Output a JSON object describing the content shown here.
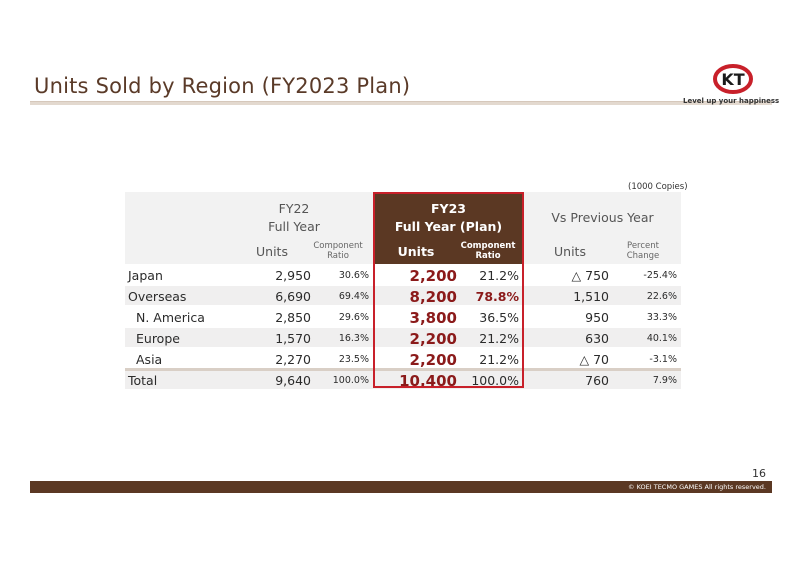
{
  "header": {
    "title": "Units Sold by Region (FY2023 Plan)",
    "logo_text": "KT",
    "tagline": "Level up your happiness"
  },
  "table": {
    "unit_note": "(1000 Copies)",
    "groups": {
      "fy22": {
        "line1": "FY22",
        "line2": "Full Year"
      },
      "fy23": {
        "line1": "FY23",
        "line2": "Full Year (Plan)"
      },
      "vs": {
        "label": "Vs Previous Year"
      }
    },
    "subheaders": {
      "fy22_units": "Units",
      "fy22_ratio_1": "Component",
      "fy22_ratio_2": "Ratio",
      "fy23_units": "Units",
      "fy23_ratio_1": "Component",
      "fy23_ratio_2": "Ratio",
      "vs_units": "Units",
      "vs_change_1": "Percent",
      "vs_change_2": "Change"
    },
    "rows": [
      {
        "region": "Japan",
        "fy22_units": "2,950",
        "fy22_ratio": "30.6%",
        "fy23_units": "2,200",
        "fy23_ratio": "21.2%",
        "vs_units": "△ 750",
        "vs_change": "-25.4%"
      },
      {
        "region": "Overseas",
        "fy22_units": "6,690",
        "fy22_ratio": "69.4%",
        "fy23_units": "8,200",
        "fy23_ratio": "78.8%",
        "vs_units": "1,510",
        "vs_change": "22.6%"
      },
      {
        "region": "N. America",
        "fy22_units": "2,850",
        "fy22_ratio": "29.6%",
        "fy23_units": "3,800",
        "fy23_ratio": "36.5%",
        "vs_units": "950",
        "vs_change": "33.3%"
      },
      {
        "region": "Europe",
        "fy22_units": "1,570",
        "fy22_ratio": "16.3%",
        "fy23_units": "2,200",
        "fy23_ratio": "21.2%",
        "vs_units": "630",
        "vs_change": "40.1%"
      },
      {
        "region": "Asia",
        "fy22_units": "2,270",
        "fy22_ratio": "23.5%",
        "fy23_units": "2,200",
        "fy23_ratio": "21.2%",
        "vs_units": "△ 70",
        "vs_change": "-3.1%"
      },
      {
        "region": "Total",
        "fy22_units": "9,640",
        "fy22_ratio": "100.0%",
        "fy23_units": "10,400",
        "fy23_ratio": "100.0%",
        "vs_units": "760",
        "vs_change": "7.9%"
      }
    ]
  },
  "footer": {
    "page_number": "16",
    "copyright": "© KOEI TECMO GAMES All rights reserved."
  },
  "colors": {
    "brand_brown": "#5b3823",
    "highlight_red": "#c8202a",
    "value_red": "#8b1a1a"
  }
}
